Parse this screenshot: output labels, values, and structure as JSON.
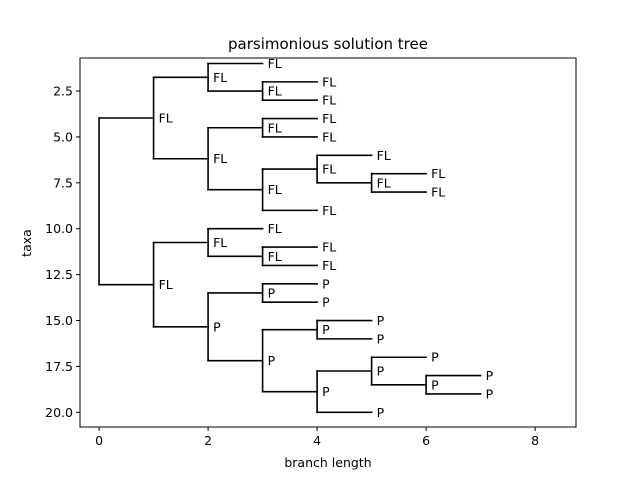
{
  "chart_data": {
    "type": "tree",
    "title": "parsimonious solution tree",
    "xlabel": "branch length",
    "ylabel": "taxa",
    "xlim": [
      -0.35,
      8.75
    ],
    "ylim": [
      20.8,
      0.7
    ],
    "x_ticks": [
      0,
      2,
      4,
      6,
      8
    ],
    "y_ticks": [
      2.5,
      5.0,
      7.5,
      10.0,
      12.5,
      15.0,
      17.5,
      20.0
    ],
    "y_tick_labels": [
      "2.5",
      "5.0",
      "7.5",
      "10.0",
      "12.5",
      "15.0",
      "17.5",
      "20.0"
    ],
    "grid": false,
    "tree": {
      "label": "",
      "children": [
        {
          "label": "FL",
          "children": [
            {
              "label": "FL",
              "children": [
                {
                  "label": "FL"
                },
                {
                  "label": "FL",
                  "children": [
                    {
                      "label": "FL"
                    },
                    {
                      "label": "FL"
                    }
                  ]
                }
              ]
            },
            {
              "label": "FL",
              "children": [
                {
                  "label": "FL",
                  "children": [
                    {
                      "label": "FL"
                    },
                    {
                      "label": "FL"
                    }
                  ]
                },
                {
                  "label": "FL",
                  "children": [
                    {
                      "label": "FL",
                      "children": [
                        {
                          "label": "FL"
                        },
                        {
                          "label": "FL",
                          "children": [
                            {
                              "label": "FL"
                            },
                            {
                              "label": "FL"
                            }
                          ]
                        }
                      ]
                    },
                    {
                      "label": "FL"
                    }
                  ]
                }
              ]
            }
          ]
        },
        {
          "label": "FL",
          "children": [
            {
              "label": "FL",
              "children": [
                {
                  "label": "FL"
                },
                {
                  "label": "FL",
                  "children": [
                    {
                      "label": "FL"
                    },
                    {
                      "label": "FL"
                    }
                  ]
                }
              ]
            },
            {
              "label": "P",
              "children": [
                {
                  "label": "P",
                  "children": [
                    {
                      "label": "P"
                    },
                    {
                      "label": "P"
                    }
                  ]
                },
                {
                  "label": "P",
                  "children": [
                    {
                      "label": "P",
                      "children": [
                        {
                          "label": "P"
                        },
                        {
                          "label": "P"
                        }
                      ]
                    },
                    {
                      "label": "P",
                      "children": [
                        {
                          "label": "P",
                          "children": [
                            {
                              "label": "P"
                            },
                            {
                              "label": "P",
                              "children": [
                                {
                                  "label": "P"
                                },
                                {
                                  "label": "P"
                                }
                              ]
                            }
                          ]
                        },
                        {
                          "label": "P"
                        }
                      ]
                    }
                  ]
                }
              ]
            }
          ]
        }
      ]
    }
  }
}
